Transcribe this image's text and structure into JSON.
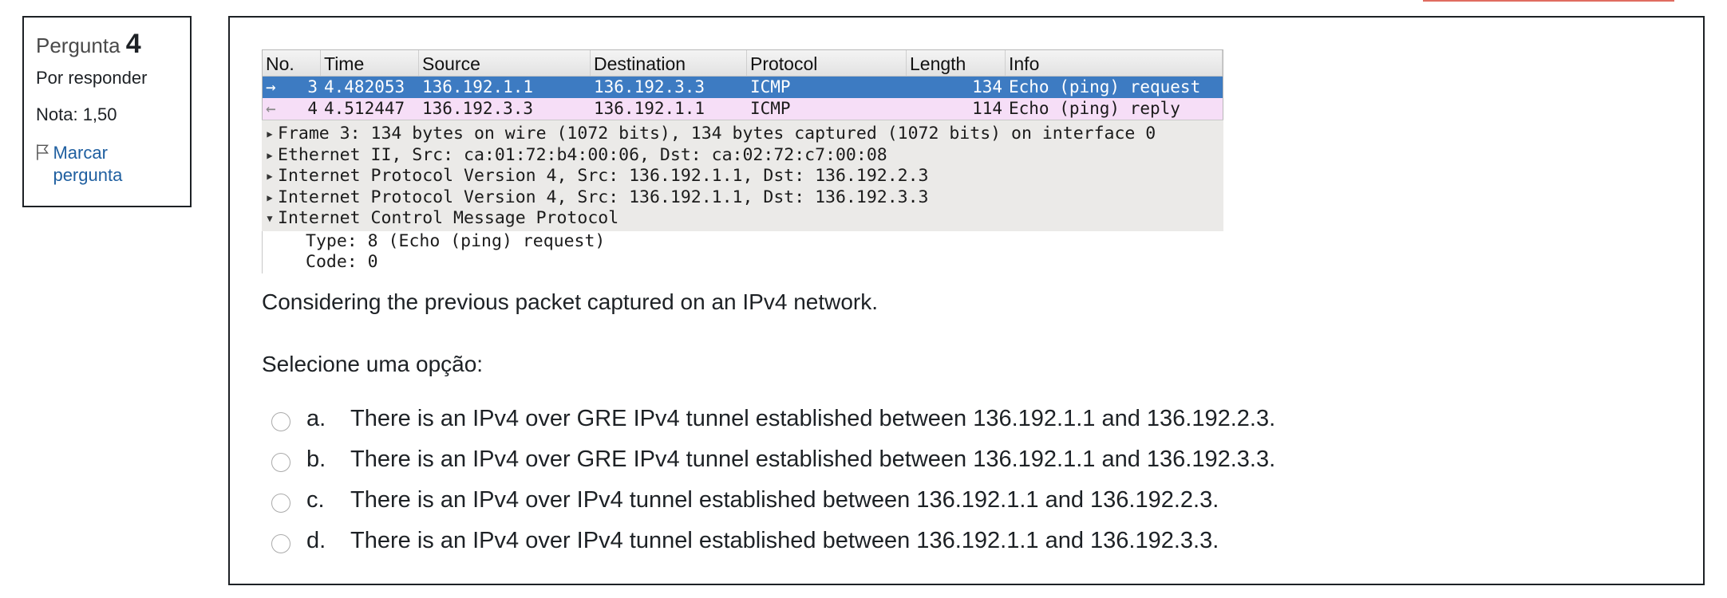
{
  "question_info": {
    "title_prefix": "Pergunta",
    "number": "4",
    "status": "Por responder",
    "grade": "Nota: 1,50",
    "flag_label": "Marcar pergunta"
  },
  "capture": {
    "columns": [
      "No.",
      "Time",
      "Source",
      "Destination",
      "Protocol",
      "Length",
      "Info"
    ],
    "rows": [
      {
        "arrow": "→",
        "no": "3",
        "time": "4.482053",
        "source": "136.192.1.1",
        "destination": "136.192.3.3",
        "protocol": "ICMP",
        "length": "134",
        "info": "Echo (ping) request"
      },
      {
        "arrow": "←",
        "no": "4",
        "time": "4.512447",
        "source": "136.192.3.3",
        "destination": "136.192.1.1",
        "protocol": "ICMP",
        "length": "114",
        "info": "Echo (ping) reply"
      }
    ],
    "details": [
      "Frame 3: 134 bytes on wire (1072 bits), 134 bytes captured (1072 bits) on interface 0",
      "Ethernet II, Src: ca:01:72:b4:00:06, Dst: ca:02:72:c7:00:08",
      "Internet Protocol Version 4, Src: 136.192.1.1, Dst: 136.192.2.3",
      "Internet Protocol Version 4, Src: 136.192.1.1, Dst: 136.192.3.3",
      "Internet Control Message Protocol"
    ],
    "sub_details": [
      "Type: 8 (Echo (ping) request)",
      "Code: 0"
    ]
  },
  "question_text": "Considering the previous packet captured on an IPv4 network.",
  "prompt": "Selecione uma opção:",
  "options": [
    {
      "letter": "a.",
      "text": "There is an IPv4 over GRE IPv4 tunnel established between 136.192.1.1 and 136.192.2.3."
    },
    {
      "letter": "b.",
      "text": "There is an IPv4 over GRE IPv4 tunnel established between 136.192.1.1 and 136.192.3.3."
    },
    {
      "letter": "c.",
      "text": "There is an IPv4 over IPv4 tunnel established between 136.192.1.1 and 136.192.2.3."
    },
    {
      "letter": "d.",
      "text": "There is an IPv4 over IPv4 tunnel established between 136.192.1.1 and 136.192.3.3."
    }
  ],
  "colors": {
    "selected_row": "#3d7bc2",
    "reply_row": "#f6def7",
    "link": "#1f5fa0"
  }
}
